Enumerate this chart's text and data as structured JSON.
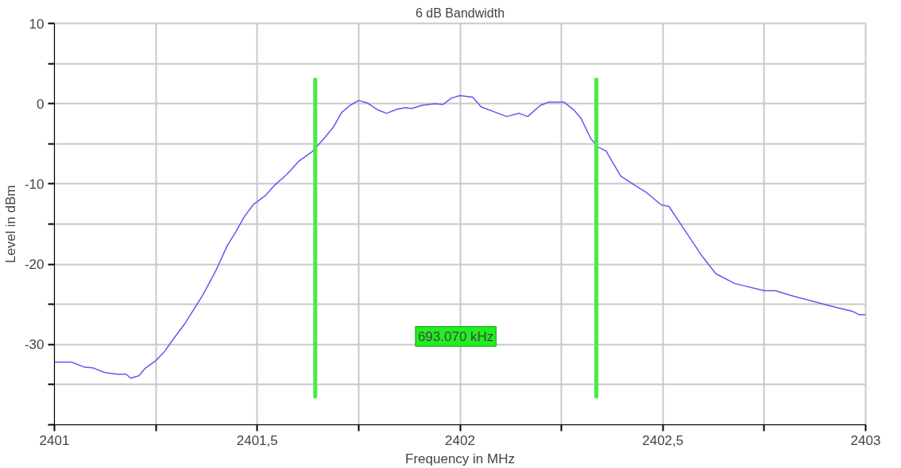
{
  "chart_data": {
    "type": "line",
    "title": "6 dB Bandwidth",
    "xlabel": "Frequency in MHz",
    "ylabel": "Level in dBm",
    "x": [
      2401.0,
      2401.042,
      2401.073,
      2401.094,
      2401.125,
      2401.156,
      2401.177,
      2401.188,
      2401.208,
      2401.223,
      2401.25,
      2401.271,
      2401.292,
      2401.323,
      2401.365,
      2401.396,
      2401.427,
      2401.448,
      2401.469,
      2401.49,
      2401.521,
      2401.542,
      2401.573,
      2401.604,
      2401.635,
      2401.667,
      2401.688,
      2401.708,
      2401.729,
      2401.75,
      2401.771,
      2401.798,
      2401.819,
      2401.844,
      2401.865,
      2401.881,
      2401.906,
      2401.938,
      2401.958,
      2401.979,
      2402.0,
      2402.031,
      2402.052,
      2402.094,
      2402.115,
      2402.146,
      2402.167,
      2402.198,
      2402.219,
      2402.256,
      2402.281,
      2402.298,
      2402.323,
      2402.34,
      2402.36,
      2402.396,
      2402.438,
      2402.458,
      2402.496,
      2402.515,
      2402.552,
      2402.594,
      2402.631,
      2402.677,
      2402.75,
      2402.777,
      2402.823,
      2402.906,
      2402.969,
      2402.985,
      2403.0
    ],
    "series": [
      {
        "color": "#5b5bf0",
        "values": [
          -32.2,
          -32.2,
          -32.8,
          -32.9,
          -33.5,
          -33.7,
          -33.7,
          -34.2,
          -33.9,
          -33.0,
          -32.0,
          -30.9,
          -29.4,
          -27.3,
          -23.9,
          -21.0,
          -17.6,
          -15.9,
          -14.0,
          -12.6,
          -11.4,
          -10.2,
          -8.8,
          -7.1,
          -6.0,
          -4.2,
          -2.9,
          -1.1,
          -0.2,
          0.4,
          0.1,
          -0.8,
          -1.2,
          -0.7,
          -0.5,
          -0.6,
          -0.2,
          0.0,
          -0.1,
          0.7,
          1.0,
          0.8,
          -0.4,
          -1.2,
          -1.6,
          -1.2,
          -1.6,
          -0.2,
          0.2,
          0.2,
          -0.8,
          -1.8,
          -4.4,
          -5.4,
          -5.9,
          -9.0,
          -10.4,
          -11.0,
          -12.6,
          -12.8,
          -15.6,
          -18.8,
          -21.2,
          -22.4,
          -23.3,
          -23.3,
          -24.0,
          -25.1,
          -25.9,
          -26.3,
          -26.3
        ]
      }
    ],
    "xlim": [
      2401,
      2403
    ],
    "ylim": [
      -40,
      10
    ],
    "xticks": [
      2401,
      {
        "value": 2401.25,
        "label": null
      },
      {
        "value": 2401.5,
        "label": "2401,5"
      },
      {
        "value": 2401.75,
        "label": null
      },
      2402,
      {
        "value": 2402.25,
        "label": null
      },
      {
        "value": 2402.5,
        "label": "2402,5"
      },
      {
        "value": 2402.75,
        "label": null
      },
      2403
    ],
    "yticks": [
      10,
      {
        "value": 5,
        "label": null
      },
      0,
      {
        "value": -5,
        "label": null
      },
      -10,
      {
        "value": -15,
        "label": null
      },
      -20,
      {
        "value": -25,
        "label": null
      },
      -30,
      {
        "value": -35,
        "label": null
      },
      {
        "value": -40,
        "label": null
      }
    ],
    "ref_lines": [
      {
        "axis": "x",
        "value": 2401.643,
        "color": "#44ee44"
      },
      {
        "axis": "x",
        "value": 2402.336,
        "color": "#44ee44"
      }
    ],
    "annotations": [
      "693.070 kHz"
    ],
    "grid": true,
    "marker": "none",
    "line_style": "solid"
  }
}
